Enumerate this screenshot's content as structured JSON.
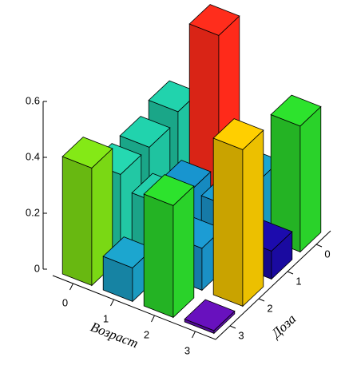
{
  "chart_data": {
    "type": "bar3d",
    "x_label": "Возраст",
    "y_label": "Доза",
    "xticks": [
      0,
      1,
      2,
      3
    ],
    "yticks": [
      0,
      1,
      2,
      3
    ],
    "zlim": [
      0,
      0.6
    ],
    "zticks": [
      0,
      0.2,
      0.4,
      0.6
    ],
    "values": [
      [
        0.33,
        0.3,
        0.3,
        0.42
      ],
      [
        0.66,
        0.2,
        0.25,
        0.12
      ],
      [
        0.2,
        0.2,
        0.15,
        0.4
      ],
      [
        0.45,
        0.1,
        0.56,
        0.01
      ]
    ],
    "colors": [
      [
        "#1fc3a0",
        "#1fc3a0",
        "#22c8a4",
        "#7ad814"
      ],
      [
        "#ff2a1a",
        "#168ac0",
        "#20c0a0",
        "#1a9ac0"
      ],
      [
        "#1a9ac0",
        "#1a90c4",
        "#1a90c4",
        "#2ad22a"
      ],
      [
        "#2ad22a",
        "#1a0aa0",
        "#ecc000",
        "#6010b0"
      ]
    ]
  }
}
